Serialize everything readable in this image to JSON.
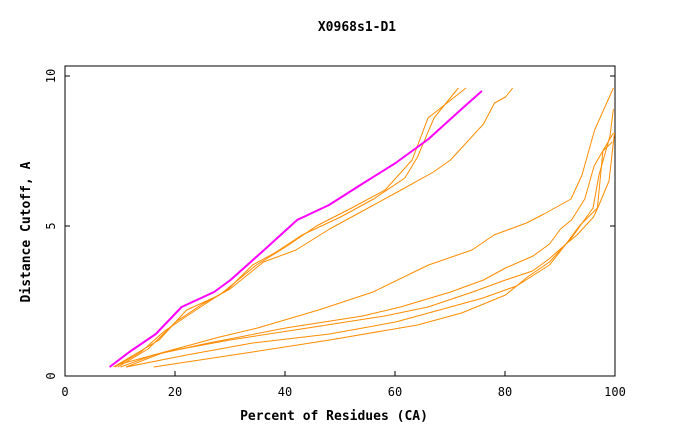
{
  "chart_data": {
    "type": "line",
    "title": "X0968s1-D1",
    "xlabel": "Percent of Residues (CA)",
    "ylabel": "Distance Cutoff, A",
    "xlim": [
      0,
      100
    ],
    "ylim": [
      0,
      10
    ],
    "xticks": [
      0,
      20,
      40,
      60,
      80,
      100
    ],
    "yticks": [
      0,
      5,
      10
    ],
    "grid": false,
    "colors": {
      "highlight": "#ff00ff",
      "other": "#ff8c00"
    },
    "series": [
      {
        "highlight": true,
        "x": [
          8.1,
          11.7,
          16.5,
          21.2,
          27.1,
          30.1,
          36.2,
          42.2,
          48.0,
          54.0,
          60.1,
          66.1,
          72.1,
          75.8
        ],
        "y": [
          0.3,
          0.8,
          1.4,
          2.3,
          2.8,
          3.2,
          4.2,
          5.2,
          5.7,
          6.4,
          7.1,
          7.9,
          8.9,
          9.5
        ]
      },
      {
        "x": [
          8.8,
          12.5,
          17.1,
          22.1,
          28.1,
          34.8,
          40.1,
          45.7,
          52.1,
          58.2,
          63.1,
          66.0,
          72.9
        ],
        "y": [
          0.3,
          0.7,
          1.2,
          2.2,
          2.7,
          3.7,
          4.3,
          5.0,
          5.6,
          6.2,
          7.2,
          8.6,
          9.6
        ]
      },
      {
        "x": [
          9.1,
          13.8,
          18.1,
          23.8,
          29.7,
          34.1,
          38.1,
          43.1,
          50.1,
          56.1,
          61.8,
          64.1,
          67.1,
          71.5
        ],
        "y": [
          0.3,
          0.8,
          1.5,
          2.2,
          2.9,
          3.7,
          4.1,
          4.7,
          5.3,
          5.9,
          6.6,
          7.3,
          8.6,
          9.6
        ]
      },
      {
        "x": [
          9.6,
          15.1,
          20.1,
          25.0,
          30.0,
          36.1,
          42.0,
          48.1,
          54.1,
          60.1,
          67.0,
          70.1,
          76.1,
          78.1,
          80.1,
          81.4
        ],
        "y": [
          0.3,
          0.9,
          1.8,
          2.4,
          2.9,
          3.8,
          4.2,
          4.9,
          5.5,
          6.1,
          6.8,
          7.2,
          8.4,
          9.1,
          9.3,
          9.6
        ]
      },
      {
        "x": [
          10.1,
          14.1,
          20.1,
          28.1,
          35.0,
          46.1,
          56.0,
          66.1,
          74.0,
          78.0,
          83.9,
          87.1,
          92.0,
          94.0,
          96.3,
          99.7
        ],
        "y": [
          0.4,
          0.6,
          0.9,
          1.3,
          1.6,
          2.2,
          2.8,
          3.7,
          4.2,
          4.7,
          5.1,
          5.4,
          5.9,
          6.7,
          8.2,
          9.6
        ]
      },
      {
        "x": [
          10.1,
          16.1,
          26.1,
          40.1,
          54.1,
          61.0,
          70.1,
          76.1,
          80.1,
          85.1,
          88.1,
          90.1,
          92.1,
          94.5,
          96.2,
          98.1,
          99.7
        ],
        "y": [
          0.3,
          0.7,
          1.1,
          1.6,
          2.0,
          2.3,
          2.8,
          3.2,
          3.6,
          4.0,
          4.4,
          4.9,
          5.2,
          5.9,
          7.0,
          7.6,
          8.1
        ]
      },
      {
        "x": [
          11.1,
          18.1,
          30.0,
          44.1,
          58.1,
          66.0,
          74.1,
          80.1,
          85.0,
          88.0,
          91.1,
          93.5,
          96.8,
          97.8,
          99.5
        ],
        "y": [
          0.3,
          0.8,
          1.2,
          1.6,
          2.0,
          2.3,
          2.8,
          3.2,
          3.5,
          3.9,
          4.4,
          5.0,
          5.6,
          7.5,
          7.8
        ]
      },
      {
        "x": [
          11.1,
          22.1,
          34.1,
          48.1,
          60.1,
          68.1,
          76.0,
          82.1,
          88.1,
          91.1,
          93.1,
          96.1,
          97.1,
          98.9,
          99.9
        ],
        "y": [
          0.3,
          0.7,
          1.1,
          1.4,
          1.8,
          2.2,
          2.6,
          3.0,
          3.7,
          4.4,
          4.7,
          5.3,
          5.7,
          6.5,
          8.1
        ]
      },
      {
        "x": [
          16.1,
          34.1,
          48.1,
          64.1,
          72.1,
          80.1,
          84.1,
          88.1,
          92.1,
          96.0,
          97.1,
          99.1,
          99.7
        ],
        "y": [
          0.3,
          0.8,
          1.2,
          1.7,
          2.1,
          2.7,
          3.3,
          3.8,
          4.6,
          5.6,
          6.7,
          8.0,
          8.9
        ]
      }
    ]
  }
}
